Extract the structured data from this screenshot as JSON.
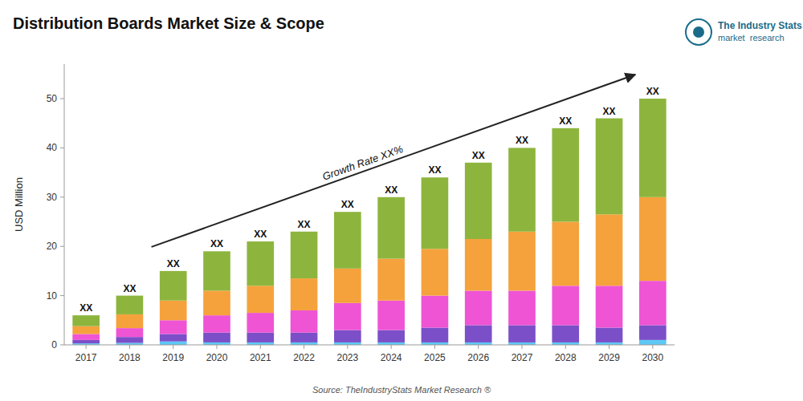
{
  "chart_data": {
    "type": "bar",
    "stacked": true,
    "grid": false,
    "title": "Distribution Boards Market Size & Scope",
    "ylabel": "USD Million",
    "source": "Source: TheIndustryStats Market Research ®",
    "annotation": "Growth Rate XX%",
    "total_label": "XX",
    "logo_text": [
      "The Industry Stats",
      "market  research"
    ],
    "logo_color": "#1a6b8a",
    "categories": [
      "2017",
      "2018",
      "2019",
      "2020",
      "2021",
      "2022",
      "2023",
      "2024",
      "2025",
      "2026",
      "2027",
      "2028",
      "2029",
      "2030"
    ],
    "series": [
      {
        "color": "#5ec8f5",
        "values": [
          0.3,
          0.4,
          0.7,
          0.5,
          0.5,
          0.5,
          0.5,
          0.5,
          0.5,
          0.5,
          0.5,
          0.5,
          0.5,
          1.0
        ]
      },
      {
        "color": "#7b4fc8",
        "values": [
          0.7,
          1.2,
          1.5,
          2.0,
          2.0,
          2.0,
          2.5,
          2.5,
          3.0,
          3.5,
          3.5,
          3.5,
          3.0,
          3.0
        ]
      },
      {
        "color": "#ee54d4",
        "values": [
          1.2,
          1.8,
          2.8,
          3.5,
          4.0,
          4.5,
          5.5,
          6.0,
          6.5,
          7.0,
          7.0,
          8.0,
          8.5,
          9.0
        ]
      },
      {
        "color": "#f5a23c",
        "values": [
          1.6,
          2.8,
          4.0,
          5.0,
          5.5,
          6.5,
          7.0,
          8.5,
          9.5,
          10.5,
          12.0,
          13.0,
          14.5,
          17.0
        ]
      },
      {
        "color": "#8db53e",
        "values": [
          2.2,
          3.8,
          6.0,
          8.0,
          9.0,
          9.5,
          11.5,
          12.5,
          14.5,
          15.5,
          17.0,
          19.0,
          19.5,
          20.0
        ]
      }
    ],
    "ylim": [
      0,
      57
    ],
    "yticks": [
      0,
      10,
      20,
      30,
      40,
      50
    ]
  }
}
